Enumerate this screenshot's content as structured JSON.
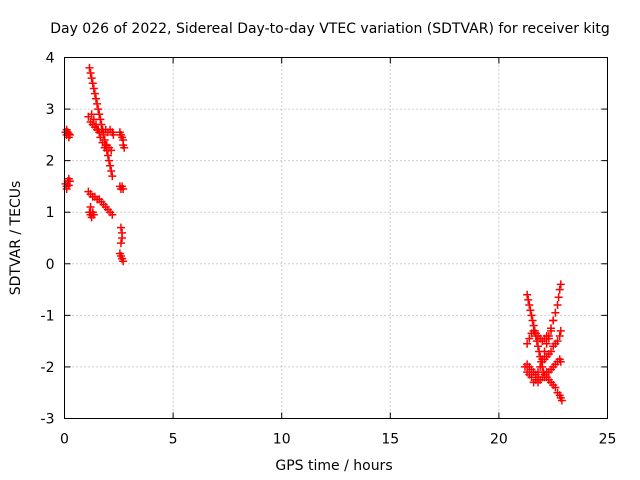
{
  "chart_data": {
    "type": "scatter",
    "title": "Day 026 of 2022, Sidereal Day-to-day VTEC variation (SDTVAR) for receiver kitg",
    "xlabel": "GPS time / hours",
    "ylabel": "SDTVAR / TECUs",
    "xlim": [
      0,
      25
    ],
    "ylim": [
      -3,
      4
    ],
    "xticks": [
      "0",
      "5",
      "10",
      "15",
      "20",
      "25"
    ],
    "yticks": [
      "4",
      "3",
      "2",
      "1",
      "0",
      "-1",
      "-2",
      "-3"
    ],
    "grid": true,
    "legend": "none",
    "marker": "+",
    "color": "#ff0000",
    "series": [
      {
        "values": [
          [
            0.05,
            2.55
          ],
          [
            0.1,
            2.5
          ],
          [
            0.15,
            2.55
          ],
          [
            0.2,
            2.45
          ],
          [
            0.25,
            2.5
          ],
          [
            0.1,
            2.6
          ],
          [
            0.2,
            2.52
          ],
          [
            0.05,
            1.55
          ],
          [
            0.1,
            1.5
          ],
          [
            0.15,
            1.6
          ],
          [
            0.2,
            1.65
          ],
          [
            0.25,
            1.6
          ],
          [
            0.1,
            1.45
          ],
          [
            0.2,
            1.52
          ],
          [
            1.15,
            3.8
          ],
          [
            1.2,
            3.7
          ],
          [
            1.25,
            3.6
          ],
          [
            1.3,
            3.5
          ],
          [
            1.35,
            3.4
          ],
          [
            1.4,
            3.3
          ],
          [
            1.45,
            3.2
          ],
          [
            1.5,
            3.1
          ],
          [
            1.55,
            3.0
          ],
          [
            1.6,
            2.9
          ],
          [
            1.65,
            2.8
          ],
          [
            1.7,
            2.7
          ],
          [
            1.75,
            2.6
          ],
          [
            1.8,
            2.5
          ],
          [
            1.85,
            2.4
          ],
          [
            1.9,
            2.3
          ],
          [
            1.95,
            2.2
          ],
          [
            2.0,
            2.1
          ],
          [
            2.05,
            2.0
          ],
          [
            2.1,
            1.9
          ],
          [
            2.15,
            1.8
          ],
          [
            2.2,
            1.7
          ],
          [
            1.1,
            2.85
          ],
          [
            1.2,
            2.75
          ],
          [
            1.3,
            2.7
          ],
          [
            1.4,
            2.65
          ],
          [
            1.5,
            2.6
          ],
          [
            1.6,
            2.55
          ],
          [
            1.7,
            2.6
          ],
          [
            1.8,
            2.55
          ],
          [
            1.9,
            2.6
          ],
          [
            2.0,
            2.55
          ],
          [
            2.1,
            2.6
          ],
          [
            2.2,
            2.55
          ],
          [
            2.25,
            2.5
          ],
          [
            1.25,
            2.9
          ],
          [
            1.35,
            2.8
          ],
          [
            1.45,
            2.7
          ],
          [
            1.55,
            2.6
          ],
          [
            1.65,
            2.45
          ],
          [
            1.75,
            2.35
          ],
          [
            1.85,
            2.25
          ],
          [
            1.95,
            2.3
          ],
          [
            2.05,
            2.25
          ],
          [
            2.15,
            2.2
          ],
          [
            1.1,
            1.4
          ],
          [
            1.2,
            1.35
          ],
          [
            1.3,
            1.3
          ],
          [
            1.4,
            1.3
          ],
          [
            1.5,
            1.25
          ],
          [
            1.6,
            1.25
          ],
          [
            1.7,
            1.2
          ],
          [
            1.8,
            1.15
          ],
          [
            1.9,
            1.1
          ],
          [
            2.0,
            1.05
          ],
          [
            2.1,
            1.0
          ],
          [
            2.2,
            0.95
          ],
          [
            1.15,
            1.0
          ],
          [
            1.2,
            0.95
          ],
          [
            1.25,
            0.9
          ],
          [
            1.3,
            1.0
          ],
          [
            1.35,
            0.95
          ],
          [
            1.2,
            1.1
          ],
          [
            2.55,
            2.55
          ],
          [
            2.6,
            2.5
          ],
          [
            2.65,
            2.45
          ],
          [
            2.7,
            2.4
          ],
          [
            2.7,
            2.3
          ],
          [
            2.75,
            2.25
          ],
          [
            2.55,
            1.5
          ],
          [
            2.6,
            1.45
          ],
          [
            2.65,
            1.5
          ],
          [
            2.7,
            1.45
          ],
          [
            2.6,
            0.7
          ],
          [
            2.65,
            0.6
          ],
          [
            2.65,
            0.5
          ],
          [
            2.6,
            0.4
          ],
          [
            2.55,
            0.2
          ],
          [
            2.6,
            0.15
          ],
          [
            2.65,
            0.1
          ],
          [
            2.7,
            0.05
          ],
          [
            2.65,
            0.1
          ],
          [
            21.3,
            -0.6
          ],
          [
            21.35,
            -0.7
          ],
          [
            21.4,
            -0.8
          ],
          [
            21.45,
            -0.9
          ],
          [
            21.5,
            -1.0
          ],
          [
            21.55,
            -1.1
          ],
          [
            21.6,
            -1.2
          ],
          [
            21.65,
            -1.3
          ],
          [
            21.7,
            -1.4
          ],
          [
            21.75,
            -1.5
          ],
          [
            21.8,
            -1.6
          ],
          [
            21.85,
            -1.7
          ],
          [
            21.9,
            -1.8
          ],
          [
            21.95,
            -1.9
          ],
          [
            22.0,
            -2.0
          ],
          [
            22.05,
            -2.1
          ],
          [
            22.1,
            -2.2
          ],
          [
            21.3,
            -1.95
          ],
          [
            21.4,
            -2.0
          ],
          [
            21.5,
            -2.05
          ],
          [
            21.6,
            -2.1
          ],
          [
            21.7,
            -2.15
          ],
          [
            21.8,
            -2.2
          ],
          [
            21.9,
            -2.25
          ],
          [
            22.0,
            -2.2
          ],
          [
            22.1,
            -2.15
          ],
          [
            22.2,
            -2.1
          ],
          [
            21.2,
            -2.0
          ],
          [
            21.3,
            -2.1
          ],
          [
            21.4,
            -2.15
          ],
          [
            21.5,
            -2.2
          ],
          [
            21.6,
            -2.3
          ],
          [
            21.7,
            -2.25
          ],
          [
            21.8,
            -2.3
          ],
          [
            21.3,
            -1.55
          ],
          [
            21.4,
            -1.45
          ],
          [
            21.5,
            -1.35
          ],
          [
            21.6,
            -1.3
          ],
          [
            21.7,
            -1.35
          ],
          [
            21.8,
            -1.4
          ],
          [
            21.9,
            -1.45
          ],
          [
            22.0,
            -1.5
          ],
          [
            22.1,
            -1.45
          ],
          [
            22.2,
            -1.4
          ],
          [
            22.3,
            -1.45
          ],
          [
            22.4,
            -1.3
          ],
          [
            22.5,
            -1.1
          ],
          [
            22.0,
            -1.9
          ],
          [
            22.1,
            -1.85
          ],
          [
            22.2,
            -1.8
          ],
          [
            22.3,
            -1.75
          ],
          [
            22.4,
            -1.7
          ],
          [
            22.5,
            -1.6
          ],
          [
            22.6,
            -1.55
          ],
          [
            22.7,
            -1.5
          ],
          [
            22.8,
            -1.4
          ],
          [
            22.85,
            -1.3
          ],
          [
            21.7,
            -2.2
          ],
          [
            21.8,
            -2.1
          ],
          [
            21.9,
            -2.0
          ],
          [
            22.0,
            -1.85
          ],
          [
            22.1,
            -1.7
          ],
          [
            22.2,
            -1.55
          ],
          [
            22.3,
            -1.4
          ],
          [
            22.4,
            -1.25
          ],
          [
            22.5,
            -1.1
          ],
          [
            22.6,
            -0.95
          ],
          [
            22.7,
            -0.8
          ],
          [
            22.75,
            -0.65
          ],
          [
            22.8,
            -0.5
          ],
          [
            22.85,
            -0.4
          ],
          [
            22.2,
            -2.2
          ],
          [
            22.3,
            -2.25
          ],
          [
            22.4,
            -2.3
          ],
          [
            22.5,
            -2.35
          ],
          [
            22.6,
            -2.4
          ],
          [
            22.7,
            -2.5
          ],
          [
            22.8,
            -2.55
          ],
          [
            22.85,
            -2.6
          ],
          [
            22.9,
            -2.65
          ],
          [
            22.3,
            -2.1
          ],
          [
            22.4,
            -2.05
          ],
          [
            22.5,
            -2.0
          ],
          [
            22.6,
            -1.95
          ],
          [
            22.7,
            -1.9
          ],
          [
            22.8,
            -1.85
          ],
          [
            22.85,
            -1.9
          ]
        ]
      }
    ]
  }
}
